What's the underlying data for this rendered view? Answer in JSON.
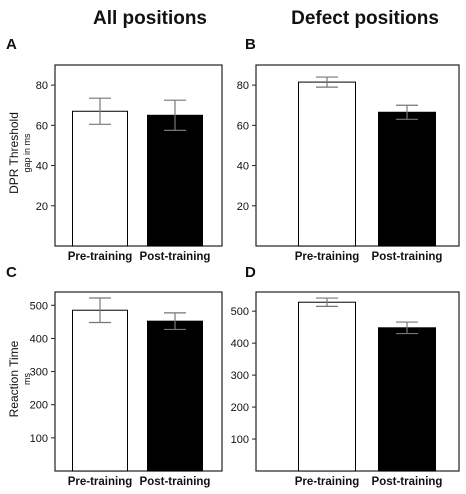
{
  "columns": {
    "left_title": "All positions",
    "right_title": "Defect positions"
  },
  "ylabels": {
    "top": {
      "main": "DPR Threshold",
      "unit": "gap in ms"
    },
    "bottom": {
      "main": "Reaction Time",
      "unit": "ms"
    }
  },
  "chart_data": [
    {
      "panel": "A",
      "type": "bar",
      "categories": [
        "Pre-training",
        "Post-training"
      ],
      "values": [
        67,
        65
      ],
      "errors": [
        6.5,
        7.5
      ],
      "colors": [
        "#ffffff",
        "#000000"
      ],
      "yticks": [
        20,
        40,
        60,
        80
      ],
      "ylim": [
        0,
        90
      ],
      "ylabel": "DPR Threshold gap in ms",
      "grid": false
    },
    {
      "panel": "B",
      "type": "bar",
      "categories": [
        "Pre-training",
        "Post-training"
      ],
      "values": [
        81.5,
        66.5
      ],
      "errors": [
        2.5,
        3.5
      ],
      "colors": [
        "#ffffff",
        "#000000"
      ],
      "yticks": [
        20,
        40,
        60,
        80
      ],
      "ylim": [
        0,
        90
      ],
      "grid": false
    },
    {
      "panel": "C",
      "type": "bar",
      "categories": [
        "Pre-training",
        "Post-training"
      ],
      "values": [
        485,
        452
      ],
      "errors": [
        37,
        25
      ],
      "colors": [
        "#ffffff",
        "#000000"
      ],
      "yticks": [
        100,
        200,
        300,
        400,
        500
      ],
      "ylim": [
        0,
        540
      ],
      "ylabel": "Reaction Time ms",
      "grid": false
    },
    {
      "panel": "D",
      "type": "bar",
      "categories": [
        "Pre-training",
        "Post-training"
      ],
      "values": [
        528,
        448
      ],
      "errors": [
        13,
        18
      ],
      "colors": [
        "#ffffff",
        "#000000"
      ],
      "yticks": [
        100,
        200,
        300,
        400,
        500
      ],
      "ylim": [
        0,
        560
      ],
      "grid": false
    }
  ]
}
